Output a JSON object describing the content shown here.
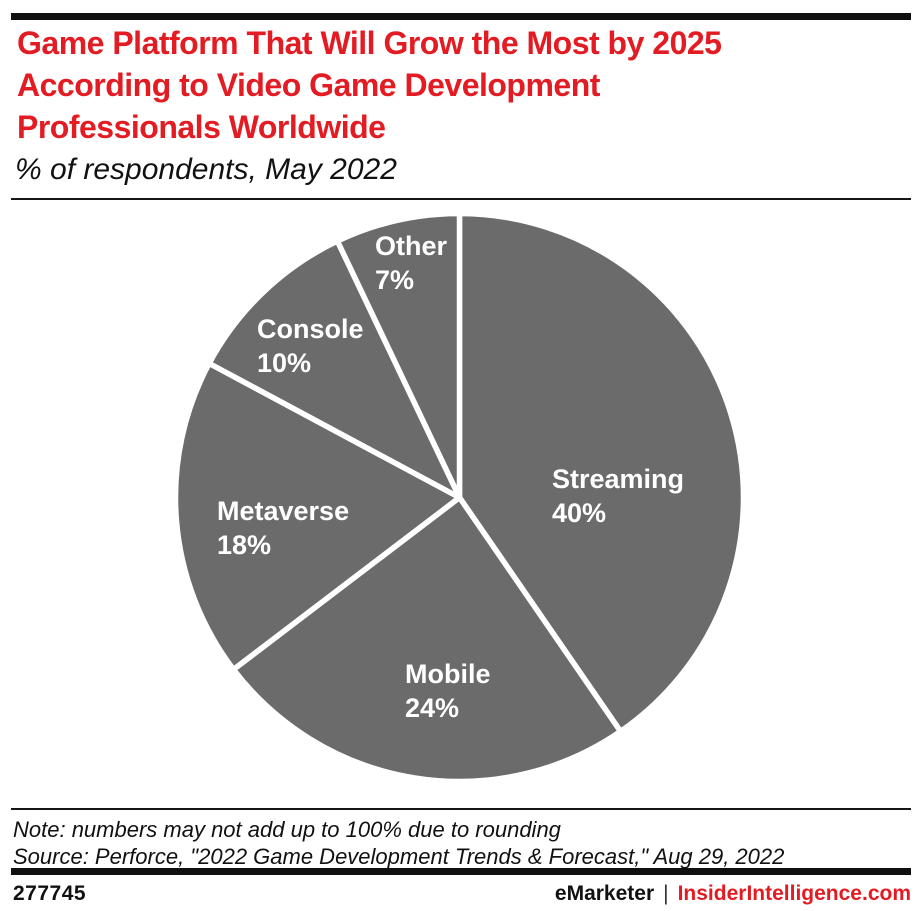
{
  "header": {
    "title_lines": [
      "Game Platform That Will Grow the Most by 2025",
      "According to Video Game Development",
      "Professionals Worldwide"
    ],
    "subtitle": "% of respondents, May 2022"
  },
  "chart_data": {
    "type": "pie",
    "title": "Game Platform That Will Grow the Most by 2025 According to Video Game Development Professionals Worldwide",
    "subtitle": "% of respondents, May 2022",
    "start_angle": "12 o'clock",
    "direction": "clockwise",
    "slice_color": "#6b6b6b",
    "separator_color": "#ffffff",
    "label_color": "#ffffff",
    "slices": [
      {
        "label": "Streaming",
        "value": 40,
        "display": "40%"
      },
      {
        "label": "Mobile",
        "value": 24,
        "display": "24%"
      },
      {
        "label": "Metaverse",
        "value": 18,
        "display": "18%"
      },
      {
        "label": "Console",
        "value": 10,
        "display": "10%"
      },
      {
        "label": "Other",
        "value": 7,
        "display": "7%"
      }
    ]
  },
  "footer": {
    "note": "Note: numbers may not add up to 100% due to rounding",
    "source": "Source: Perforce, \"2022 Game Development Trends & Forecast,\" Aug 29, 2022",
    "chart_id": "277745",
    "brand_left": "eMarketer",
    "brand_separator": "|",
    "brand_right": "InsiderIntelligence.com"
  },
  "colors": {
    "accent_red": "#e31b22",
    "pie_gray": "#6b6b6b"
  }
}
